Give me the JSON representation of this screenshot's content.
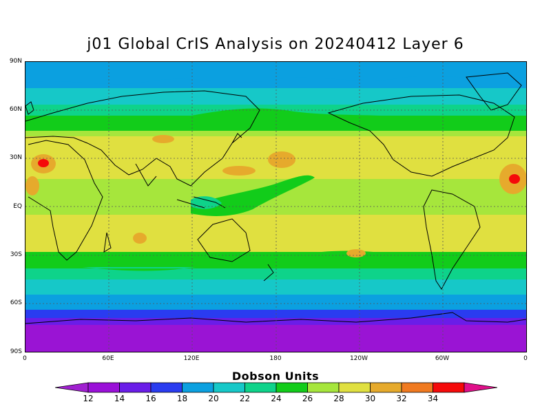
{
  "title": "j01 Global CrIS Analysis on 20240412 Layer 6",
  "y_ticks": [
    "90N",
    "60N",
    "30N",
    "EQ",
    "30S",
    "60S",
    "90S"
  ],
  "x_ticks": [
    "0",
    "60E",
    "120E",
    "180",
    "120W",
    "60W",
    "0"
  ],
  "colorbar": {
    "title": "Dobson Units",
    "labels": [
      "12",
      "14",
      "16",
      "18",
      "20",
      "22",
      "24",
      "26",
      "28",
      "30",
      "32",
      "34"
    ],
    "colors": [
      "#9a10d8",
      "#6a1de8",
      "#2a3cf0",
      "#0ba0e0",
      "#16c8c8",
      "#0ed38a",
      "#12cc1a",
      "#a6e63c",
      "#e0e040",
      "#e6aa2c",
      "#f07a20",
      "#f50a0a",
      "#e0108a"
    ],
    "under_color": "#a020d0",
    "over_color": "#e0108a"
  },
  "map_bands_colors": {
    "polar": "#9a14d4",
    "deep_blue": "#6a1de8",
    "blue": "#2a3cf0",
    "sky": "#0ba0e0",
    "cyan": "#16c8c8",
    "teal": "#0ed38a",
    "green": "#12cc1a",
    "lime": "#a6e63c",
    "yellow": "#e0e040",
    "orange": "#e6aa2c",
    "red": "#f50a0a"
  }
}
